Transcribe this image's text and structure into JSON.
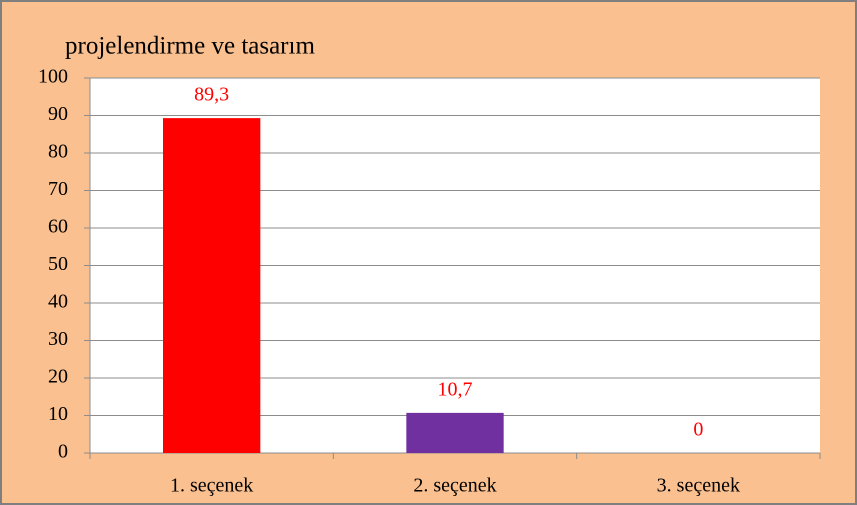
{
  "chart_data": {
    "type": "bar",
    "title": "projelendirme ve tasarım",
    "categories": [
      "1. seçenek",
      "2. seçenek",
      "3. seçenek"
    ],
    "values": [
      89.3,
      10.7,
      0
    ],
    "value_labels": [
      "89,3",
      "10,7",
      "0"
    ],
    "colors": [
      "#ff0000",
      "#7030a0",
      null
    ],
    "label_color": "#ff0000",
    "ylim": [
      0,
      100
    ],
    "yticks": [
      0,
      10,
      20,
      30,
      40,
      50,
      60,
      70,
      80,
      90,
      100
    ],
    "grid": true
  }
}
